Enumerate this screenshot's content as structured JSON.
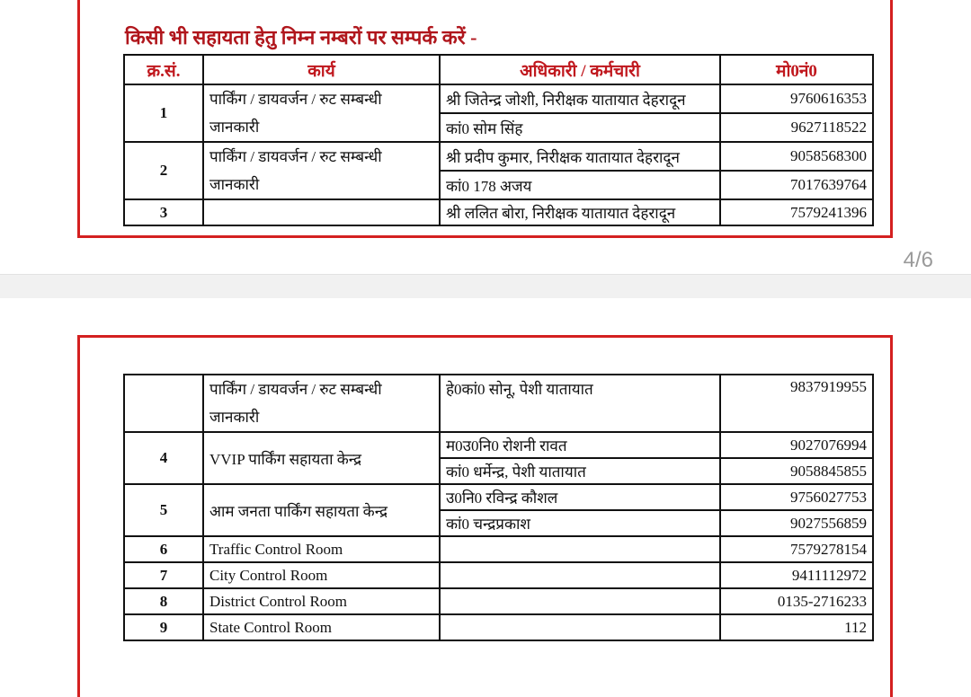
{
  "viewer": {
    "page_indicator": "4/6"
  },
  "heading": "किसी भी सहायता हेतु निम्न नम्बरों पर सम्पर्क करें -",
  "columns": [
    "क्र.सं.",
    "कार्य",
    "अधिकारी / कर्मचारी",
    "मो0नं0"
  ],
  "page1_rows": [
    {
      "sn": "1",
      "task": "पार्किंग / डायवर्जन / रुट सम्बन्धी",
      "task2": "जानकारी",
      "contacts": [
        {
          "name": "श्री जितेन्द्र जोशी, निरीक्षक यातायात देहरादून",
          "phone": "9760616353"
        },
        {
          "name": "कां0 सोम सिंह",
          "phone": "9627118522"
        }
      ]
    },
    {
      "sn": "2",
      "task": "पार्किंग / डायवर्जन / रुट सम्बन्धी",
      "task2": "जानकारी",
      "contacts": [
        {
          "name": "श्री प्रदीप कुमार, निरीक्षक यातायात देहरादून",
          "phone": "9058568300"
        },
        {
          "name": "कां0 178 अजय",
          "phone": "7017639764"
        }
      ]
    },
    {
      "sn": "3",
      "task": "",
      "contacts": [
        {
          "name": "श्री ललित बोरा, निरीक्षक यातायात देहरादून",
          "phone": "7579241396"
        }
      ]
    }
  ],
  "page2_rows": [
    {
      "sn": "",
      "task": "पार्किंग / डायवर्जन / रुट सम्बन्धी",
      "task2": "जानकारी",
      "contacts": [
        {
          "name": "हे0कां0 सोनू, पेशी यातायात",
          "phone": "9837919955"
        }
      ]
    },
    {
      "sn": "4",
      "task": "VVIP पार्किंग सहायता केन्द्र",
      "contacts": [
        {
          "name": "म0उ0नि0 रोशनी रावत",
          "phone": "9027076994"
        },
        {
          "name": "कां0 धर्मेन्द्र, पेशी यातायात",
          "phone": "9058845855"
        }
      ]
    },
    {
      "sn": "5",
      "task": "आम जनता पार्किंग सहायता केन्द्र",
      "contacts": [
        {
          "name": "उ0नि0 रविन्द्र कौशल",
          "phone": "9756027753"
        },
        {
          "name": "कां0 चन्द्रप्रकाश",
          "phone": "9027556859"
        }
      ]
    },
    {
      "sn": "6",
      "task": "Traffic Control Room",
      "phone": "7579278154"
    },
    {
      "sn": "7",
      "task": "City Control Room",
      "phone": "9411112972"
    },
    {
      "sn": "8",
      "task": "District Control Room",
      "phone": "0135-2716233"
    },
    {
      "sn": "9",
      "task": "State Control Room",
      "phone": "112"
    }
  ],
  "colors": {
    "accent_red": "#d42020",
    "heading_red": "#b0161c"
  }
}
